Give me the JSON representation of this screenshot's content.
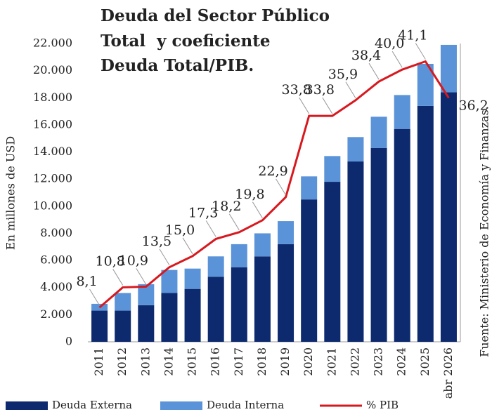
{
  "chart_data": {
    "type": "bar",
    "title": [
      "Deuda del Sector Público",
      "Total  y coeficiente",
      "Deuda Total/PIB."
    ],
    "y_label": "En millones de USD",
    "source": "Fuente: Ministerio de Economía y Finanzas.",
    "stacked": true,
    "categories": [
      "2011",
      "2012",
      "2013",
      "2014",
      "2015",
      "2016",
      "2017",
      "2018",
      "2019",
      "2020",
      "2021",
      "2022",
      "2023",
      "2024",
      "2025",
      "abr 2026"
    ],
    "series": [
      {
        "name": "Deuda Externa",
        "type": "bar",
        "color": "#0d2a6e",
        "values": [
          2300,
          2300,
          2700,
          3600,
          3900,
          4800,
          5500,
          6300,
          7200,
          10500,
          11800,
          13300,
          14300,
          15700,
          17400,
          18400
        ]
      },
      {
        "name": "Deuda Interna",
        "type": "bar",
        "color": "#5b93d8",
        "values": [
          500,
          1300,
          1550,
          1700,
          1500,
          1500,
          1700,
          1700,
          1700,
          1700,
          1900,
          1800,
          2300,
          2500,
          3100,
          3500
        ]
      },
      {
        "name": "% PIB",
        "type": "line",
        "axis": "y2",
        "color": "#d7191f",
        "values": [
          8.1,
          10.8,
          10.9,
          13.5,
          15.0,
          17.3,
          18.2,
          19.8,
          22.9,
          33.8,
          33.8,
          35.9,
          38.4,
          40.0,
          41.1,
          36.2
        ],
        "value_labels": [
          "8,1",
          "10,8",
          "10,9",
          "13,5",
          "15,0",
          "17,3",
          "18,2",
          "19,8",
          "22,9",
          "33,8",
          "33,8",
          "35,9",
          "38,4",
          "40,0",
          "41,1",
          "36,2"
        ]
      }
    ],
    "ylim": [
      0,
      22000
    ],
    "yticks": [
      0,
      {
        "value": 2000,
        "label": "2.000"
      },
      {
        "value": 4000,
        "label": "4.000"
      },
      {
        "value": 6000,
        "label": "6.000"
      },
      {
        "value": 8000,
        "label": "8.000"
      },
      {
        "value": 10000,
        "label": "10.000"
      },
      {
        "value": 12000,
        "label": "12.000"
      },
      {
        "value": 14000,
        "label": "14.000"
      },
      {
        "value": 16000,
        "label": "16.000"
      },
      {
        "value": 18000,
        "label": "18.000"
      },
      {
        "value": 20000,
        "label": "20.000"
      },
      {
        "value": 22000,
        "label": "22.000"
      }
    ],
    "y2lim": [
      3.5,
      43.5
    ]
  }
}
